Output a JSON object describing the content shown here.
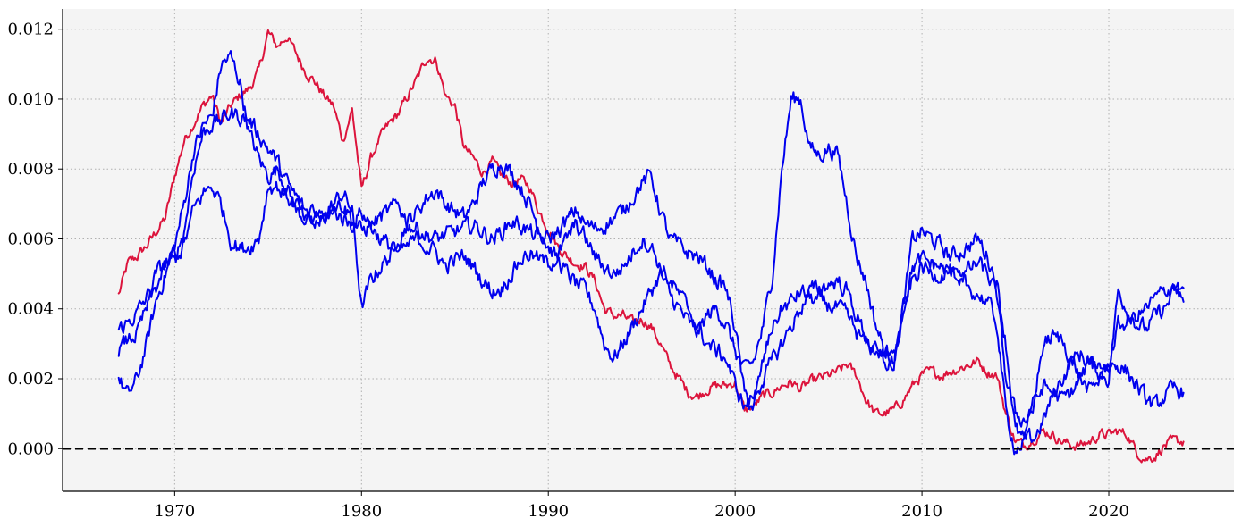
{
  "chart_data": {
    "type": "line",
    "title": "",
    "xlabel": "",
    "ylabel": "",
    "xlim": [
      1964.0,
      2026.7
    ],
    "ylim": [
      -0.00122,
      0.01258
    ],
    "xticks": [
      1970,
      1980,
      1990,
      2000,
      2010,
      2020
    ],
    "xtick_labels": [
      "1970",
      "1980",
      "1990",
      "2000",
      "2010",
      "2020"
    ],
    "yticks": [
      0.0,
      0.002,
      0.004,
      0.006,
      0.008,
      0.01,
      0.012
    ],
    "ytick_labels": [
      "0.000",
      "0.002",
      "0.004",
      "0.006",
      "0.008",
      "0.010",
      "0.012"
    ],
    "grid": true,
    "plot_background": "#f4f4f4",
    "reference_line": {
      "y": 0.0,
      "color": "#000000",
      "style": "dashed"
    },
    "series": [
      {
        "color": "#dc143c",
        "x": [
          1967.0,
          1967.5,
          1968.0,
          1968.5,
          1969.0,
          1969.5,
          1970.0,
          1970.5,
          1971.0,
          1971.5,
          1972.0,
          1972.5,
          1973.0,
          1973.5,
          1974.0,
          1974.5,
          1975.0,
          1975.5,
          1976.0,
          1976.5,
          1977.0,
          1977.5,
          1978.0,
          1978.5,
          1979.0,
          1979.5,
          1980.0,
          1980.5,
          1981.0,
          1981.5,
          1982.0,
          1982.5,
          1983.0,
          1983.5,
          1984.0,
          1984.5,
          1985.0,
          1985.5,
          1986.0,
          1986.5,
          1987.0,
          1987.5,
          1988.0,
          1988.5,
          1989.0,
          1989.5,
          1990.0,
          1990.5,
          1991.0,
          1991.5,
          1992.0,
          1992.5,
          1993.0,
          1993.5,
          1994.0,
          1994.5,
          1995.0,
          1995.5,
          1996.0,
          1996.5,
          1997.0,
          1997.5,
          1998.0,
          1998.5,
          1999.0,
          1999.5,
          2000.0,
          2000.5,
          2001.0,
          2001.5,
          2002.0,
          2002.5,
          2003.0,
          2003.5,
          2004.0,
          2004.5,
          2005.0,
          2005.5,
          2006.0,
          2006.5,
          2007.0,
          2007.5,
          2008.0,
          2008.5,
          2009.0,
          2009.5,
          2010.0,
          2010.5,
          2011.0,
          2011.5,
          2012.0,
          2012.5,
          2013.0,
          2013.5,
          2014.0,
          2014.5,
          2015.0,
          2015.5,
          2016.0,
          2016.5,
          2017.0,
          2017.5,
          2018.0,
          2018.5,
          2019.0,
          2019.5,
          2020.0,
          2020.5,
          2021.0,
          2021.5,
          2022.0,
          2022.5,
          2023.0,
          2023.5,
          2024.0
        ],
        "values": [
          0.0044,
          0.0053,
          0.0055,
          0.0058,
          0.0062,
          0.0066,
          0.0078,
          0.0088,
          0.0093,
          0.0098,
          0.0101,
          0.0093,
          0.0098,
          0.0101,
          0.0103,
          0.0108,
          0.0119,
          0.0115,
          0.0118,
          0.0113,
          0.0108,
          0.0105,
          0.0101,
          0.0098,
          0.0088,
          0.0097,
          0.0074,
          0.0083,
          0.0089,
          0.0093,
          0.0096,
          0.0101,
          0.0106,
          0.0112,
          0.0111,
          0.0101,
          0.0098,
          0.0086,
          0.0083,
          0.0079,
          0.0082,
          0.0078,
          0.0076,
          0.0077,
          0.0075,
          0.0068,
          0.0063,
          0.0058,
          0.0055,
          0.0053,
          0.0052,
          0.0048,
          0.004,
          0.0038,
          0.0038,
          0.0036,
          0.0037,
          0.0035,
          0.003,
          0.0024,
          0.002,
          0.0016,
          0.0015,
          0.0017,
          0.0018,
          0.0018,
          0.0019,
          0.0011,
          0.0012,
          0.0015,
          0.0016,
          0.0018,
          0.0019,
          0.0017,
          0.0019,
          0.002,
          0.0021,
          0.0022,
          0.0024,
          0.0021,
          0.0014,
          0.001,
          0.001,
          0.0011,
          0.0014,
          0.0018,
          0.0021,
          0.0022,
          0.0021,
          0.0022,
          0.0023,
          0.0024,
          0.0025,
          0.0022,
          0.0021,
          0.001,
          0.0002,
          0.0001,
          0.0003,
          0.0005,
          0.0004,
          0.0002,
          0.0001,
          0.0001,
          0.0002,
          0.0004,
          0.0004,
          0.0005,
          0.0004,
          -0.0001,
          -0.0003,
          -0.0002,
          0.0001,
          0.0002,
          0.0002
        ],
        "noise": 0.00025
      },
      {
        "color": "#0000ee",
        "x": [
          1967.0,
          1967.5,
          1968.0,
          1968.5,
          1969.0,
          1969.5,
          1970.0,
          1970.5,
          1971.0,
          1971.5,
          1972.0,
          1972.5,
          1973.0,
          1973.5,
          1974.0,
          1974.5,
          1975.0,
          1975.5,
          1976.0,
          1976.5,
          1977.0,
          1977.5,
          1978.0,
          1978.5,
          1979.0,
          1979.5,
          1980.0,
          1980.5,
          1981.0,
          1981.5,
          1982.0,
          1982.5,
          1983.0,
          1983.5,
          1984.0,
          1984.5,
          1985.0,
          1985.5,
          1986.0,
          1986.5,
          1987.0,
          1987.5,
          1988.0,
          1988.5,
          1989.0,
          1989.5,
          1990.0,
          1990.5,
          1991.0,
          1991.5,
          1992.0,
          1992.5,
          1993.0,
          1993.5,
          1994.0,
          1994.5,
          1995.0,
          1995.5,
          1996.0,
          1996.5,
          1997.0,
          1997.5,
          1998.0,
          1998.5,
          1999.0,
          1999.5,
          2000.0,
          2000.5,
          2001.0,
          2001.5,
          2002.0,
          2002.5,
          2003.0,
          2003.5,
          2004.0,
          2004.5,
          2005.0,
          2005.5,
          2006.0,
          2006.5,
          2007.0,
          2007.5,
          2008.0,
          2008.5,
          2009.0,
          2009.5,
          2010.0,
          2010.5,
          2011.0,
          2011.5,
          2012.0,
          2012.5,
          2013.0,
          2013.5,
          2014.0,
          2014.5,
          2015.0,
          2015.5,
          2016.0,
          2016.5,
          2017.0,
          2017.5,
          2018.0,
          2018.5,
          2019.0,
          2019.5,
          2020.0,
          2020.5,
          2021.0,
          2021.5,
          2022.0,
          2022.5,
          2023.0,
          2023.5,
          2024.0
        ],
        "values": [
          0.002,
          0.0015,
          0.002,
          0.003,
          0.0042,
          0.005,
          0.0058,
          0.007,
          0.0085,
          0.0092,
          0.0095,
          0.011,
          0.0112,
          0.0105,
          0.009,
          0.0083,
          0.0078,
          0.008,
          0.0075,
          0.0068,
          0.0066,
          0.0067,
          0.0066,
          0.007,
          0.0073,
          0.0068,
          0.004,
          0.0048,
          0.0052,
          0.0055,
          0.006,
          0.0065,
          0.0068,
          0.0072,
          0.0074,
          0.007,
          0.0068,
          0.0066,
          0.007,
          0.0076,
          0.008,
          0.0082,
          0.0079,
          0.0075,
          0.007,
          0.0063,
          0.0058,
          0.0054,
          0.005,
          0.0047,
          0.0045,
          0.004,
          0.003,
          0.0026,
          0.003,
          0.0035,
          0.004,
          0.0045,
          0.005,
          0.0044,
          0.004,
          0.0036,
          0.0033,
          0.0038,
          0.004,
          0.0036,
          0.0028,
          0.0022,
          0.0025,
          0.0035,
          0.005,
          0.008,
          0.01,
          0.01,
          0.0086,
          0.0084,
          0.0086,
          0.0084,
          0.007,
          0.0055,
          0.0048,
          0.0036,
          0.0028,
          0.0025,
          0.004,
          0.006,
          0.0062,
          0.006,
          0.0058,
          0.0055,
          0.0056,
          0.0058,
          0.006,
          0.0055,
          0.0048,
          0.003,
          0.0005,
          0.0002,
          0.0003,
          0.0008,
          0.0015,
          0.002,
          0.0025,
          0.0027,
          0.0024,
          0.0022,
          0.002,
          0.0045,
          0.004,
          0.0036,
          0.0034,
          0.0038,
          0.004,
          0.0045,
          0.0046
        ],
        "noise": 0.0004
      },
      {
        "color": "#0000ee",
        "x": [
          1967.0,
          1967.5,
          1968.0,
          1968.5,
          1969.0,
          1969.5,
          1970.0,
          1970.5,
          1971.0,
          1971.5,
          1972.0,
          1972.5,
          1973.0,
          1973.5,
          1974.0,
          1974.5,
          1975.0,
          1975.5,
          1976.0,
          1976.5,
          1977.0,
          1977.5,
          1978.0,
          1978.5,
          1979.0,
          1979.5,
          1980.0,
          1980.5,
          1981.0,
          1981.5,
          1982.0,
          1982.5,
          1983.0,
          1983.5,
          1984.0,
          1984.5,
          1985.0,
          1985.5,
          1986.0,
          1986.5,
          1987.0,
          1987.5,
          1988.0,
          1988.5,
          1989.0,
          1989.5,
          1990.0,
          1990.5,
          1991.0,
          1991.5,
          1992.0,
          1992.5,
          1993.0,
          1993.5,
          1994.0,
          1994.5,
          1995.0,
          1995.5,
          1996.0,
          1996.5,
          1997.0,
          1997.5,
          1998.0,
          1998.5,
          1999.0,
          1999.5,
          2000.0,
          2000.5,
          2001.0,
          2001.5,
          2002.0,
          2002.5,
          2003.0,
          2003.5,
          2004.0,
          2004.5,
          2005.0,
          2005.5,
          2006.0,
          2006.5,
          2007.0,
          2007.5,
          2008.0,
          2008.5,
          2009.0,
          2009.5,
          2010.0,
          2010.5,
          2011.0,
          2011.5,
          2012.0,
          2012.5,
          2013.0,
          2013.5,
          2014.0,
          2014.5,
          2015.0,
          2015.5,
          2016.0,
          2016.5,
          2017.0,
          2017.5,
          2018.0,
          2018.5,
          2019.0,
          2019.5,
          2020.0,
          2020.5,
          2021.0,
          2021.5,
          2022.0,
          2022.5,
          2023.0,
          2023.5,
          2024.0
        ],
        "values": [
          0.0034,
          0.0036,
          0.0039,
          0.0043,
          0.005,
          0.0053,
          0.0055,
          0.0062,
          0.008,
          0.009,
          0.0093,
          0.0094,
          0.0096,
          0.0095,
          0.0094,
          0.009,
          0.0086,
          0.0082,
          0.0076,
          0.0072,
          0.0068,
          0.0066,
          0.0068,
          0.007,
          0.007,
          0.0066,
          0.0062,
          0.0064,
          0.0066,
          0.0068,
          0.007,
          0.0064,
          0.0063,
          0.0061,
          0.006,
          0.0061,
          0.0062,
          0.0063,
          0.0064,
          0.0062,
          0.006,
          0.0062,
          0.0065,
          0.0064,
          0.0062,
          0.006,
          0.006,
          0.0062,
          0.0065,
          0.0068,
          0.0064,
          0.0063,
          0.0064,
          0.0066,
          0.0068,
          0.0072,
          0.0076,
          0.0078,
          0.0068,
          0.006,
          0.0058,
          0.0056,
          0.0055,
          0.0052,
          0.0048,
          0.0046,
          0.0035,
          0.0015,
          0.0012,
          0.0025,
          0.0035,
          0.004,
          0.0042,
          0.0045,
          0.0043,
          0.0042,
          0.0041,
          0.004,
          0.0038,
          0.0033,
          0.003,
          0.0028,
          0.0027,
          0.0026,
          0.004,
          0.0052,
          0.0054,
          0.0053,
          0.0052,
          0.005,
          0.0049,
          0.0051,
          0.0053,
          0.005,
          0.0044,
          0.002,
          0.001,
          0.0008,
          0.0012,
          0.0018,
          0.0016,
          0.0014,
          0.0016,
          0.002,
          0.0025,
          0.0024,
          0.0024,
          0.0024,
          0.0022,
          0.0018,
          0.0014,
          0.0012,
          0.0015,
          0.0017,
          0.0016
        ],
        "noise": 0.0004
      },
      {
        "color": "#0000ee",
        "x": [
          1967.0,
          1967.5,
          1968.0,
          1968.5,
          1969.0,
          1969.5,
          1970.0,
          1970.5,
          1971.0,
          1971.5,
          1972.0,
          1972.5,
          1973.0,
          1973.5,
          1974.0,
          1974.5,
          1975.0,
          1975.5,
          1976.0,
          1976.5,
          1977.0,
          1977.5,
          1978.0,
          1978.5,
          1979.0,
          1979.5,
          1980.0,
          1980.5,
          1981.0,
          1981.5,
          1982.0,
          1982.5,
          1983.0,
          1983.5,
          1984.0,
          1984.5,
          1985.0,
          1985.5,
          1986.0,
          1986.5,
          1987.0,
          1987.5,
          1988.0,
          1988.5,
          1989.0,
          1989.5,
          1990.0,
          1990.5,
          1991.0,
          1991.5,
          1992.0,
          1992.5,
          1993.0,
          1993.5,
          1994.0,
          1994.5,
          1995.0,
          1995.5,
          1996.0,
          1996.5,
          1997.0,
          1997.5,
          1998.0,
          1998.5,
          1999.0,
          1999.5,
          2000.0,
          2000.5,
          2001.0,
          2001.5,
          2002.0,
          2002.5,
          2003.0,
          2003.5,
          2004.0,
          2004.5,
          2005.0,
          2005.5,
          2006.0,
          2006.5,
          2007.0,
          2007.5,
          2008.0,
          2008.5,
          2009.0,
          2009.5,
          2010.0,
          2010.5,
          2011.0,
          2011.5,
          2012.0,
          2012.5,
          2013.0,
          2013.5,
          2014.0,
          2014.5,
          2015.0,
          2015.5,
          2016.0,
          2016.5,
          2017.0,
          2017.5,
          2018.0,
          2018.5,
          2019.0,
          2019.5,
          2020.0,
          2020.5,
          2021.0,
          2021.5,
          2022.0,
          2022.5,
          2023.0,
          2023.5,
          2024.0
        ],
        "values": [
          0.0028,
          0.0031,
          0.0033,
          0.004,
          0.0046,
          0.0052,
          0.0054,
          0.0058,
          0.0068,
          0.0073,
          0.0075,
          0.007,
          0.006,
          0.0057,
          0.0058,
          0.006,
          0.0075,
          0.0075,
          0.0072,
          0.007,
          0.0065,
          0.0064,
          0.0066,
          0.0068,
          0.0066,
          0.0064,
          0.0068,
          0.0064,
          0.006,
          0.0058,
          0.0056,
          0.0058,
          0.006,
          0.0058,
          0.0056,
          0.0052,
          0.0054,
          0.0055,
          0.0052,
          0.0048,
          0.0045,
          0.0046,
          0.005,
          0.0054,
          0.0056,
          0.0054,
          0.0053,
          0.0055,
          0.006,
          0.0064,
          0.006,
          0.0055,
          0.0052,
          0.005,
          0.0052,
          0.0056,
          0.006,
          0.0058,
          0.0052,
          0.0048,
          0.0044,
          0.004,
          0.0035,
          0.003,
          0.0028,
          0.0026,
          0.0018,
          0.0012,
          0.0015,
          0.002,
          0.0025,
          0.003,
          0.0035,
          0.004,
          0.0045,
          0.0046,
          0.0047,
          0.0048,
          0.0045,
          0.0038,
          0.0032,
          0.0028,
          0.0024,
          0.0025,
          0.004,
          0.0048,
          0.0052,
          0.005,
          0.005,
          0.0051,
          0.0048,
          0.0046,
          0.0044,
          0.0042,
          0.0036,
          0.001,
          0.0,
          0.0002,
          0.0015,
          0.003,
          0.0032,
          0.0031,
          0.0026,
          0.002,
          0.0016,
          0.002,
          0.0024,
          0.0035,
          0.0036,
          0.0038,
          0.004,
          0.0043,
          0.0045,
          0.0047,
          0.0042
        ],
        "noise": 0.0004
      }
    ]
  }
}
